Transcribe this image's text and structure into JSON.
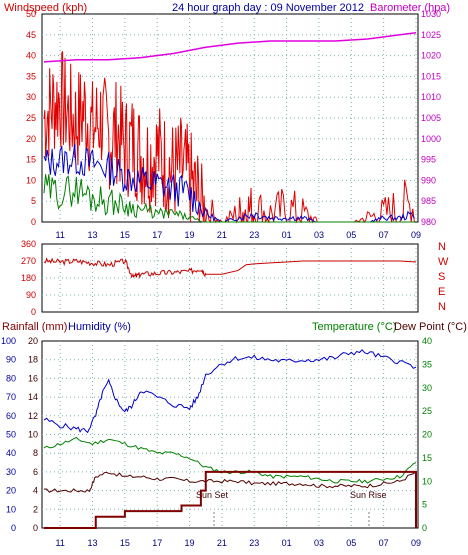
{
  "header": {
    "title": "24 hour graph day : 09 November 2012",
    "windspeed_label": "Windspeed (kph)",
    "barometer_label": "Barometer (hpa)"
  },
  "lower_header": {
    "rainfall_label": "Rainfall (mm)",
    "humidity_label": "Humidity (%)",
    "temperature_label": "Temperature (°C)",
    "dewpoint_label": "Dew Point (°C)"
  },
  "annotations": {
    "sunset": "Sun Set",
    "sunrise": "Sun Rise"
  },
  "colors": {
    "windspeed": "#e00000",
    "wind_avg": "#0000c8",
    "wind_min": "#008000",
    "barometer": "#e000e0",
    "direction": "#c80000",
    "humidity": "#0000c8",
    "temperature": "#008000",
    "dewpoint": "#500000",
    "rainfall": "#800000",
    "label_red": "#d00000",
    "label_blue": "#0000a0",
    "label_green": "#008000",
    "label_magenta": "#c000c0"
  },
  "chart_data": [
    {
      "type": "line",
      "name": "wind-barometer",
      "x_ticks": [
        "11",
        "13",
        "15",
        "17",
        "19",
        "21",
        "23",
        "01",
        "03",
        "05",
        "07",
        "09"
      ],
      "wind_ticks": [
        "50",
        "45",
        "40",
        "35",
        "30",
        "25",
        "20",
        "15",
        "10",
        "5",
        "0"
      ],
      "baro_ticks": [
        "1030",
        "1025",
        "1020",
        "1015",
        "1010",
        "1005",
        "1000",
        "995",
        "990",
        "985",
        "980"
      ],
      "ylim_wind": [
        0,
        50
      ],
      "ylim_baro": [
        980,
        1030
      ],
      "series": [
        {
          "name": "Windspeed (kph)",
          "axis": "left",
          "x": [
            10,
            10.5,
            11,
            11.5,
            12,
            12.5,
            13,
            13.5,
            14,
            14.5,
            15,
            15.5,
            16,
            16.5,
            17,
            17.5,
            18,
            18.5,
            19,
            19.5,
            20,
            21,
            22,
            22.5,
            23,
            24,
            25,
            26,
            27,
            28,
            29,
            30,
            31,
            32,
            33
          ],
          "values": [
            25,
            28,
            30,
            26,
            24,
            27,
            22,
            25,
            20,
            22,
            18,
            19,
            16,
            15,
            17,
            14,
            12,
            13,
            10,
            6,
            3,
            0,
            2,
            3,
            3,
            2,
            3,
            2,
            0,
            0,
            0,
            1,
            2,
            3,
            4
          ]
        },
        {
          "name": "Avg",
          "axis": "left",
          "x": [
            10,
            11,
            12,
            13,
            14,
            15,
            16,
            17,
            18,
            19,
            20,
            21,
            22,
            23,
            24,
            25,
            26,
            27,
            28,
            29,
            30,
            31,
            32,
            33
          ],
          "values": [
            14,
            15,
            15,
            14,
            13,
            11,
            10,
            9,
            8,
            7,
            2,
            0,
            1,
            2,
            1,
            1,
            1,
            0,
            0,
            0,
            0,
            1,
            1,
            2
          ]
        },
        {
          "name": "Min",
          "axis": "left",
          "x": [
            10,
            11,
            12,
            13,
            14,
            15,
            16,
            17,
            18,
            19,
            20,
            21,
            22,
            23,
            24,
            25,
            26,
            27,
            28,
            29,
            30,
            31,
            32,
            33
          ],
          "values": [
            8,
            7,
            8,
            6,
            5,
            4,
            3,
            2,
            2,
            1,
            0,
            0,
            0,
            0,
            0,
            0,
            0,
            0,
            0,
            0,
            0,
            0,
            0,
            0
          ]
        },
        {
          "name": "Barometer (hpa)",
          "axis": "right",
          "x": [
            10,
            12,
            14,
            16,
            18,
            20,
            22,
            24,
            26,
            28,
            30,
            31,
            32,
            33
          ],
          "values": [
            1018.5,
            1019,
            1019,
            1019.5,
            1020.5,
            1022,
            1023,
            1023.5,
            1023.5,
            1023.5,
            1024,
            1024.5,
            1025,
            1025.5
          ]
        }
      ]
    },
    {
      "type": "line",
      "name": "wind-direction",
      "y_ticks": [
        "360",
        "270",
        "180",
        "90",
        "0"
      ],
      "compass": [
        "N",
        "W",
        "S",
        "E",
        "N"
      ],
      "ylim": [
        0,
        360
      ],
      "series": [
        {
          "name": "Direction",
          "x": [
            10,
            11,
            12,
            13,
            14,
            15,
            15.5,
            16,
            17,
            18,
            19,
            19.7,
            20,
            21,
            22,
            22.5,
            23,
            24,
            25,
            26,
            27,
            28,
            29,
            30,
            31,
            32,
            33
          ],
          "values": [
            270,
            265,
            270,
            260,
            250,
            270,
            185,
            200,
            205,
            210,
            215,
            230,
            200,
            200,
            220,
            250,
            255,
            260,
            265,
            270,
            270,
            270,
            270,
            270,
            270,
            270,
            265
          ]
        }
      ]
    },
    {
      "type": "line",
      "name": "humidity-temperature",
      "rain_ticks": [
        "20",
        "18",
        "16",
        "14",
        "12",
        "10",
        "8",
        "6",
        "4",
        "2",
        "0"
      ],
      "hum_ticks": [
        "100",
        "90",
        "80",
        "70",
        "60",
        "50",
        "40",
        "30",
        "20",
        "10",
        "0"
      ],
      "temp_ticks": [
        "40",
        "35",
        "30",
        "25",
        "20",
        "15",
        "10",
        "5",
        "0"
      ],
      "ylim_rain": [
        0,
        20
      ],
      "ylim_hum": [
        0,
        100
      ],
      "ylim_temp": [
        0,
        40
      ],
      "series": [
        {
          "name": "Humidity (%)",
          "axis": "humidity",
          "x": [
            10,
            11,
            12,
            12.7,
            13.2,
            13.6,
            14,
            14.5,
            15,
            15.5,
            16,
            17,
            18,
            19,
            19.5,
            20,
            21,
            22,
            23,
            24,
            25,
            26,
            27,
            28,
            29,
            30,
            31,
            32,
            33
          ],
          "values": [
            58,
            55,
            53,
            52,
            60,
            72,
            78,
            68,
            62,
            66,
            74,
            70,
            66,
            64,
            70,
            82,
            88,
            91,
            91,
            90,
            89,
            90,
            90,
            91,
            94,
            94,
            91,
            89,
            86
          ]
        },
        {
          "name": "Temperature (°C)",
          "axis": "temp",
          "x": [
            10,
            11,
            12,
            13,
            14,
            15,
            16,
            17,
            18,
            19,
            20,
            21,
            22,
            23,
            24,
            25,
            26,
            27,
            28,
            29,
            30,
            31,
            32,
            33
          ],
          "values": [
            17,
            18,
            19,
            18,
            19,
            18,
            17,
            16,
            16,
            15,
            13,
            12,
            12,
            12,
            11,
            11,
            11,
            10.5,
            10,
            10,
            10,
            10.5,
            11,
            14
          ]
        },
        {
          "name": "Dew Point (°C)",
          "axis": "temp",
          "x": [
            10,
            11,
            12,
            12.8,
            13.2,
            14,
            15,
            16,
            17,
            18,
            19,
            20,
            21,
            22,
            23,
            24,
            25,
            26,
            27,
            28,
            29,
            30,
            31,
            32,
            33
          ],
          "values": [
            8,
            8,
            8,
            8,
            11,
            12,
            11,
            11,
            10.5,
            10.5,
            10,
            10,
            10,
            10,
            9.5,
            9.5,
            9.5,
            9.5,
            9,
            9,
            9,
            9,
            9.5,
            10,
            12
          ]
        },
        {
          "name": "Rainfall (mm)",
          "axis": "rain",
          "x": [
            10,
            12,
            13.1,
            13.2,
            14.5,
            15,
            17,
            18.5,
            19.5,
            19.7,
            20,
            25,
            30,
            32.9,
            33
          ],
          "values": [
            0,
            0,
            0,
            1.2,
            1.2,
            1.8,
            1.8,
            2.4,
            2.4,
            4,
            6,
            6,
            6,
            6,
            0
          ]
        }
      ]
    }
  ]
}
